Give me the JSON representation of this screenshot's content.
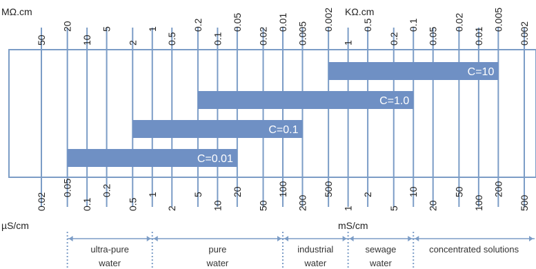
{
  "units": {
    "top_left": "MΩ.cm",
    "top_right": "KΩ.cm",
    "bottom_left": "µS/cm",
    "bottom_right": "mS/cm"
  },
  "colors": {
    "line": "#7b9cc6",
    "bar": "#6f90c4",
    "frame": "#7b9cc6"
  },
  "resistivity_scale": {
    "megaohm_ticks": [
      "50",
      "20",
      "10",
      "5",
      "2",
      "1",
      "0.5",
      "0.2",
      "0.1",
      "0.05",
      "0.02",
      "0.01",
      "0.005",
      "0.002"
    ],
    "kiloohm_ticks": [
      "1",
      "0.5",
      "0.2",
      "0.1",
      "0.05",
      "0.02",
      "0.01",
      "0.005",
      "0.002"
    ]
  },
  "conductivity_scale": {
    "microsiemens_ticks": [
      "0.02",
      "0.05",
      "0.1",
      "0.2",
      "0.5",
      "1",
      "2",
      "5",
      "10",
      "20",
      "50",
      "100",
      "200",
      "500"
    ],
    "millisiemens_ticks": [
      "1",
      "2",
      "5",
      "10",
      "20",
      "50",
      "100",
      "200",
      "500"
    ]
  },
  "cell_constant_ranges": [
    {
      "label": "C=10",
      "from_uS_cm": 500,
      "to_uS_cm": 200000
    },
    {
      "label": "C=1.0",
      "from_uS_cm": 5,
      "to_uS_cm": 10000
    },
    {
      "label": "C=0.1",
      "from_uS_cm": 0.5,
      "to_uS_cm": 200
    },
    {
      "label": "C=0.01",
      "from_uS_cm": 0.05,
      "to_uS_cm": 20
    }
  ],
  "applications": [
    {
      "line1": "ultra-pure",
      "line2": "water"
    },
    {
      "line1": "pure",
      "line2": "water"
    },
    {
      "line1": "industrial",
      "line2": "water"
    },
    {
      "line1": "sewage",
      "line2": "water"
    },
    {
      "line1": "concentrated solutions",
      "line2": ""
    }
  ]
}
